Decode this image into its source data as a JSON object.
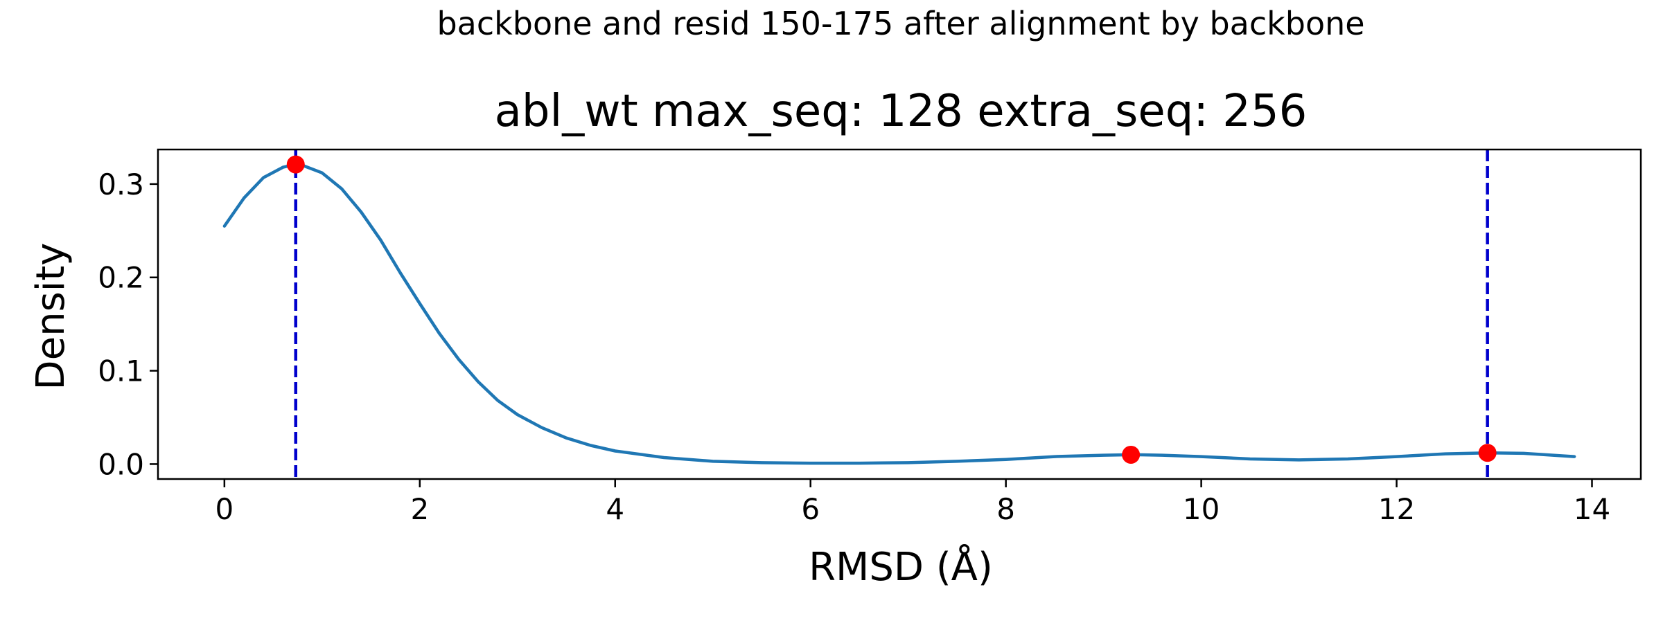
{
  "chart_data": {
    "type": "line",
    "suptitle": "backbone and resid 150-175 after alignment by backbone",
    "title": "abl_wt max_seq: 128 extra_seq: 256",
    "xlabel": "RMSD (Å)",
    "ylabel": "Density",
    "xlim": [
      -0.68,
      14.5
    ],
    "ylim": [
      -0.016,
      0.337
    ],
    "xticks": [
      0,
      2,
      4,
      6,
      8,
      10,
      12,
      14
    ],
    "yticks": [
      0.0,
      0.1,
      0.2,
      0.3
    ],
    "ytick_labels": [
      "0.0",
      "0.1",
      "0.2",
      "0.3"
    ],
    "grid": false,
    "series": [
      {
        "color": "#1f77b4",
        "x": [
          0,
          0.2,
          0.4,
          0.6,
          0.73,
          0.8,
          1.0,
          1.2,
          1.4,
          1.6,
          1.8,
          2.0,
          2.2,
          2.4,
          2.6,
          2.8,
          3.0,
          3.25,
          3.5,
          3.75,
          4.0,
          4.5,
          5.0,
          5.5,
          6.0,
          6.5,
          7.0,
          7.5,
          8.0,
          8.5,
          9.0,
          9.3,
          9.6,
          10.0,
          10.5,
          11.0,
          11.5,
          12.0,
          12.5,
          12.93,
          13.3,
          13.82
        ],
        "y": [
          0.255,
          0.285,
          0.307,
          0.318,
          0.321,
          0.32,
          0.312,
          0.295,
          0.27,
          0.24,
          0.205,
          0.172,
          0.14,
          0.112,
          0.088,
          0.068,
          0.053,
          0.039,
          0.028,
          0.02,
          0.014,
          0.007,
          0.003,
          0.0015,
          0.001,
          0.001,
          0.0015,
          0.003,
          0.005,
          0.008,
          0.0095,
          0.01,
          0.0095,
          0.008,
          0.0055,
          0.0045,
          0.0055,
          0.008,
          0.011,
          0.012,
          0.0115,
          0.008
        ]
      }
    ],
    "peaks": {
      "color": "#ff0000",
      "x": [
        0.73,
        9.28,
        12.93
      ],
      "y": [
        0.321,
        0.01,
        0.012
      ]
    },
    "vlines": {
      "color": "#0000cc",
      "style": "dashed",
      "x": [
        0.73,
        12.93
      ]
    }
  }
}
